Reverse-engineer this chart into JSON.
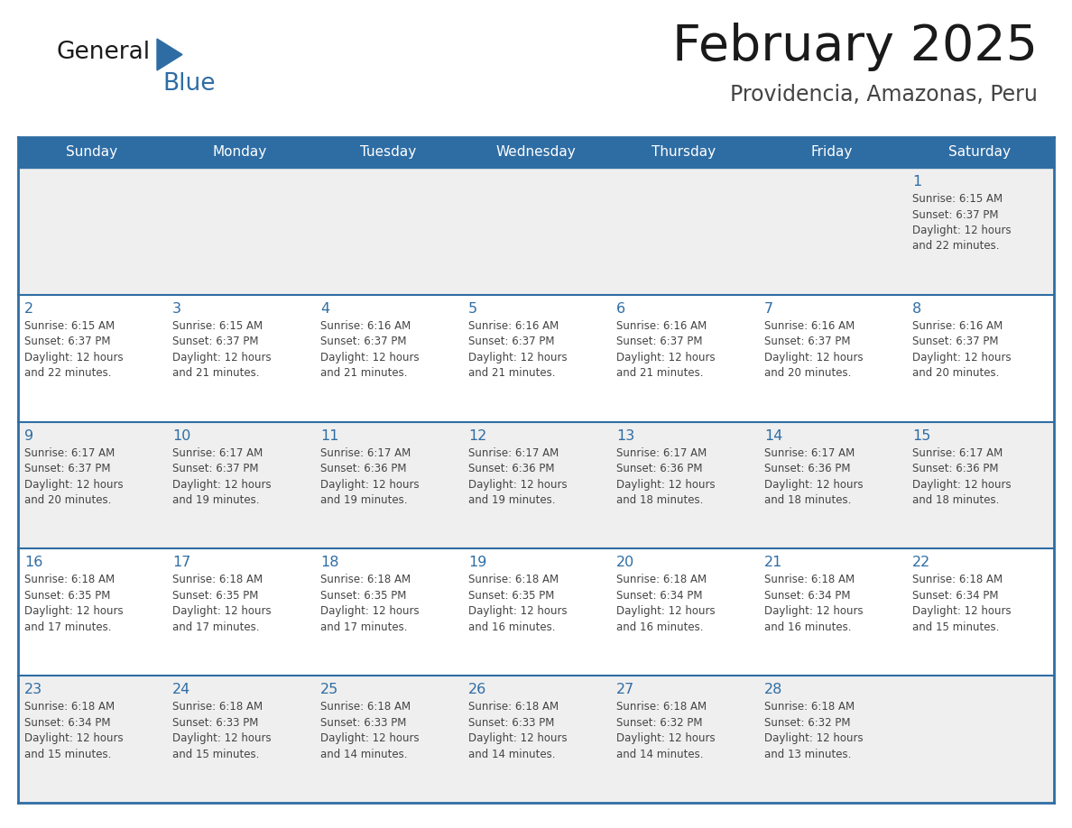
{
  "title": "February 2025",
  "subtitle": "Providencia, Amazonas, Peru",
  "header_bg": "#2E6DA4",
  "header_text_color": "#FFFFFF",
  "row_bg_odd": "#EFEFEF",
  "row_bg_even": "#FFFFFF",
  "day_headers": [
    "Sunday",
    "Monday",
    "Tuesday",
    "Wednesday",
    "Thursday",
    "Friday",
    "Saturday"
  ],
  "calendar_data": [
    [
      null,
      null,
      null,
      null,
      null,
      null,
      {
        "day": 1,
        "sunrise": "6:15 AM",
        "sunset": "6:37 PM",
        "daylight_line1": "Daylight: 12 hours",
        "daylight_line2": "and 22 minutes."
      }
    ],
    [
      {
        "day": 2,
        "sunrise": "6:15 AM",
        "sunset": "6:37 PM",
        "daylight_line1": "Daylight: 12 hours",
        "daylight_line2": "and 22 minutes."
      },
      {
        "day": 3,
        "sunrise": "6:15 AM",
        "sunset": "6:37 PM",
        "daylight_line1": "Daylight: 12 hours",
        "daylight_line2": "and 21 minutes."
      },
      {
        "day": 4,
        "sunrise": "6:16 AM",
        "sunset": "6:37 PM",
        "daylight_line1": "Daylight: 12 hours",
        "daylight_line2": "and 21 minutes."
      },
      {
        "day": 5,
        "sunrise": "6:16 AM",
        "sunset": "6:37 PM",
        "daylight_line1": "Daylight: 12 hours",
        "daylight_line2": "and 21 minutes."
      },
      {
        "day": 6,
        "sunrise": "6:16 AM",
        "sunset": "6:37 PM",
        "daylight_line1": "Daylight: 12 hours",
        "daylight_line2": "and 21 minutes."
      },
      {
        "day": 7,
        "sunrise": "6:16 AM",
        "sunset": "6:37 PM",
        "daylight_line1": "Daylight: 12 hours",
        "daylight_line2": "and 20 minutes."
      },
      {
        "day": 8,
        "sunrise": "6:16 AM",
        "sunset": "6:37 PM",
        "daylight_line1": "Daylight: 12 hours",
        "daylight_line2": "and 20 minutes."
      }
    ],
    [
      {
        "day": 9,
        "sunrise": "6:17 AM",
        "sunset": "6:37 PM",
        "daylight_line1": "Daylight: 12 hours",
        "daylight_line2": "and 20 minutes."
      },
      {
        "day": 10,
        "sunrise": "6:17 AM",
        "sunset": "6:37 PM",
        "daylight_line1": "Daylight: 12 hours",
        "daylight_line2": "and 19 minutes."
      },
      {
        "day": 11,
        "sunrise": "6:17 AM",
        "sunset": "6:36 PM",
        "daylight_line1": "Daylight: 12 hours",
        "daylight_line2": "and 19 minutes."
      },
      {
        "day": 12,
        "sunrise": "6:17 AM",
        "sunset": "6:36 PM",
        "daylight_line1": "Daylight: 12 hours",
        "daylight_line2": "and 19 minutes."
      },
      {
        "day": 13,
        "sunrise": "6:17 AM",
        "sunset": "6:36 PM",
        "daylight_line1": "Daylight: 12 hours",
        "daylight_line2": "and 18 minutes."
      },
      {
        "day": 14,
        "sunrise": "6:17 AM",
        "sunset": "6:36 PM",
        "daylight_line1": "Daylight: 12 hours",
        "daylight_line2": "and 18 minutes."
      },
      {
        "day": 15,
        "sunrise": "6:17 AM",
        "sunset": "6:36 PM",
        "daylight_line1": "Daylight: 12 hours",
        "daylight_line2": "and 18 minutes."
      }
    ],
    [
      {
        "day": 16,
        "sunrise": "6:18 AM",
        "sunset": "6:35 PM",
        "daylight_line1": "Daylight: 12 hours",
        "daylight_line2": "and 17 minutes."
      },
      {
        "day": 17,
        "sunrise": "6:18 AM",
        "sunset": "6:35 PM",
        "daylight_line1": "Daylight: 12 hours",
        "daylight_line2": "and 17 minutes."
      },
      {
        "day": 18,
        "sunrise": "6:18 AM",
        "sunset": "6:35 PM",
        "daylight_line1": "Daylight: 12 hours",
        "daylight_line2": "and 17 minutes."
      },
      {
        "day": 19,
        "sunrise": "6:18 AM",
        "sunset": "6:35 PM",
        "daylight_line1": "Daylight: 12 hours",
        "daylight_line2": "and 16 minutes."
      },
      {
        "day": 20,
        "sunrise": "6:18 AM",
        "sunset": "6:34 PM",
        "daylight_line1": "Daylight: 12 hours",
        "daylight_line2": "and 16 minutes."
      },
      {
        "day": 21,
        "sunrise": "6:18 AM",
        "sunset": "6:34 PM",
        "daylight_line1": "Daylight: 12 hours",
        "daylight_line2": "and 16 minutes."
      },
      {
        "day": 22,
        "sunrise": "6:18 AM",
        "sunset": "6:34 PM",
        "daylight_line1": "Daylight: 12 hours",
        "daylight_line2": "and 15 minutes."
      }
    ],
    [
      {
        "day": 23,
        "sunrise": "6:18 AM",
        "sunset": "6:34 PM",
        "daylight_line1": "Daylight: 12 hours",
        "daylight_line2": "and 15 minutes."
      },
      {
        "day": 24,
        "sunrise": "6:18 AM",
        "sunset": "6:33 PM",
        "daylight_line1": "Daylight: 12 hours",
        "daylight_line2": "and 15 minutes."
      },
      {
        "day": 25,
        "sunrise": "6:18 AM",
        "sunset": "6:33 PM",
        "daylight_line1": "Daylight: 12 hours",
        "daylight_line2": "and 14 minutes."
      },
      {
        "day": 26,
        "sunrise": "6:18 AM",
        "sunset": "6:33 PM",
        "daylight_line1": "Daylight: 12 hours",
        "daylight_line2": "and 14 minutes."
      },
      {
        "day": 27,
        "sunrise": "6:18 AM",
        "sunset": "6:32 PM",
        "daylight_line1": "Daylight: 12 hours",
        "daylight_line2": "and 14 minutes."
      },
      {
        "day": 28,
        "sunrise": "6:18 AM",
        "sunset": "6:32 PM",
        "daylight_line1": "Daylight: 12 hours",
        "daylight_line2": "and 13 minutes."
      },
      null
    ]
  ],
  "logo_color_general": "#1a1a1a",
  "logo_color_blue": "#2E6DA4",
  "title_color": "#1a1a1a",
  "subtitle_color": "#444444",
  "day_number_color": "#2E6DA4",
  "cell_text_color": "#444444",
  "row_separator_color": "#2E6DA4",
  "outer_border_color": "#2E6DA4"
}
